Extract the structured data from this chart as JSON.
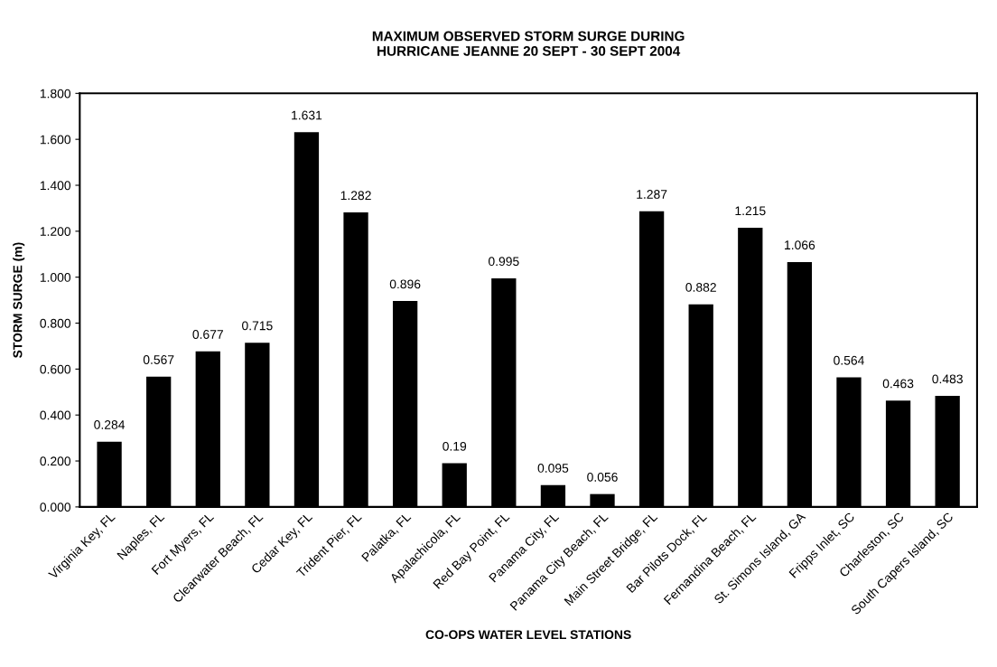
{
  "chart_data": {
    "type": "bar",
    "title": "MAXIMUM OBSERVED STORM SURGE DURING\nHURRICANE JEANNE 20 SEPT - 30 SEPT 2004",
    "xlabel": "CO-OPS WATER LEVEL STATIONS",
    "ylabel": "STORM SURGE (m)",
    "categories": [
      "Virginia Key, FL",
      "Naples, FL",
      "Fort Myers, FL",
      "Clearwater Beach, FL",
      "Cedar Key, FL",
      "Trident Pier, FL",
      "Palatka, FL",
      "Apalachicola, FL",
      "Red Bay Point, FL",
      "Panama City, FL",
      "Panama City Beach, FL",
      "Main Street Bridge, FL",
      "Bar Pilots Dock, FL",
      "Fernandina Beach, FL",
      "St. Simons Island, GA",
      "Fripps Inlet, SC",
      "Charleston, SC",
      "South Capers Island, SC"
    ],
    "values": [
      0.284,
      0.567,
      0.677,
      0.715,
      1.631,
      1.282,
      0.896,
      0.19,
      0.995,
      0.095,
      0.056,
      1.287,
      0.882,
      1.215,
      1.066,
      0.564,
      0.463,
      0.483
    ],
    "color": "#000000",
    "data_labels": true,
    "grid": false,
    "legend": false,
    "ylim": [
      0,
      1.8
    ],
    "yticks": [
      {
        "value": 0,
        "label": "0.000"
      },
      {
        "value": 0.2,
        "label": "0.200"
      },
      {
        "value": 0.4,
        "label": "0.400"
      },
      {
        "value": 0.6,
        "label": "0.600"
      },
      {
        "value": 0.8,
        "label": "0.800"
      },
      {
        "value": 1.0,
        "label": "1.000"
      },
      {
        "value": 1.2,
        "label": "1.200"
      },
      {
        "value": 1.4,
        "label": "1.400"
      },
      {
        "value": 1.6,
        "label": "1.600"
      },
      {
        "value": 1.8,
        "label": "1.800"
      }
    ]
  }
}
